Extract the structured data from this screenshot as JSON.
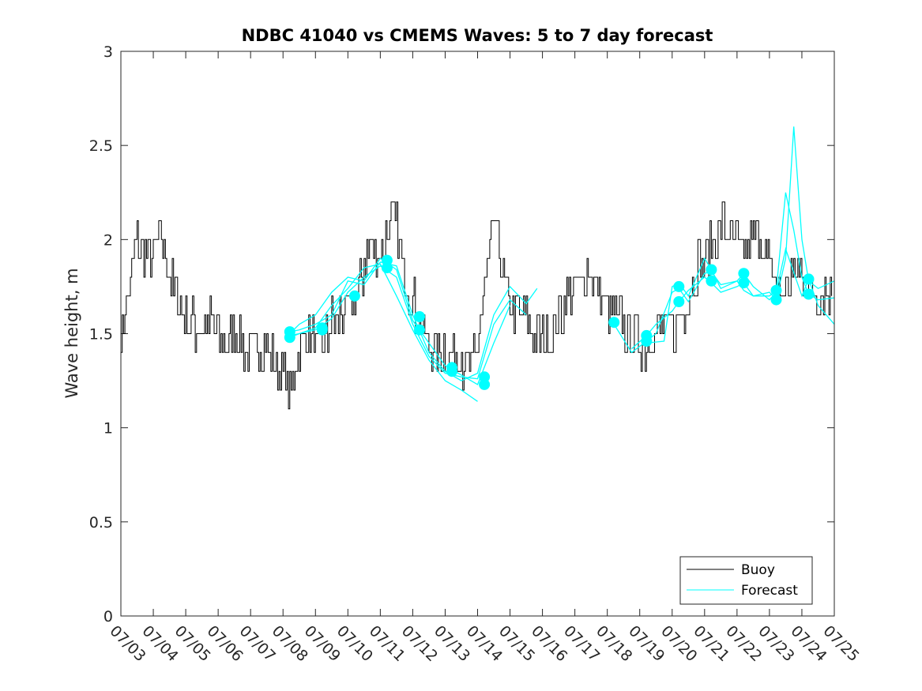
{
  "chart_data": {
    "type": "line",
    "title": "NDBC 41040 vs CMEMS Waves: 5 to 7 day forecast",
    "xlabel": "",
    "ylabel": "Wave height, m",
    "xlim": [
      "07/03",
      "07/25"
    ],
    "ylim": [
      0,
      3
    ],
    "x_tick_labels": [
      "07/03",
      "07/04",
      "07/05",
      "07/06",
      "07/07",
      "07/08",
      "07/09",
      "07/10",
      "07/11",
      "07/12",
      "07/13",
      "07/14",
      "07/15",
      "07/16",
      "07/17",
      "07/18",
      "07/19",
      "07/20",
      "07/21",
      "07/22",
      "07/23",
      "07/24",
      "07/25"
    ],
    "y_tick_labels": [
      "0",
      "0.5",
      "1",
      "1.5",
      "2",
      "2.5",
      "3"
    ],
    "y_tick_values": [
      0,
      0.5,
      1,
      1.5,
      2,
      2.5,
      3
    ],
    "grid": false,
    "legend_position": "bottom-right",
    "colors": {
      "buoy": "#000000",
      "forecast": "#00ffff"
    },
    "series": [
      {
        "name": "Buoy",
        "x": [
          "07/03 00h",
          "07/03 06h",
          "07/03 12h",
          "07/03 18h",
          "07/04 00h",
          "07/04 06h",
          "07/04 12h",
          "07/04 18h",
          "07/05 00h",
          "07/05 06h",
          "07/05 12h",
          "07/05 18h",
          "07/06 00h",
          "07/06 06h",
          "07/06 12h",
          "07/06 18h",
          "07/07 00h",
          "07/07 06h",
          "07/07 12h",
          "07/07 18h",
          "07/08 00h",
          "07/08 06h",
          "07/08 12h",
          "07/08 18h",
          "07/09 00h",
          "07/09 06h",
          "07/09 12h",
          "07/09 18h",
          "07/10 00h",
          "07/10 06h",
          "07/10 12h",
          "07/10 18h",
          "07/11 00h",
          "07/11 06h",
          "07/11 12h",
          "07/11 18h",
          "07/12 00h",
          "07/12 06h",
          "07/12 12h",
          "07/12 18h",
          "07/13 00h",
          "07/13 06h",
          "07/13 12h",
          "07/13 18h",
          "07/14 00h",
          "07/14 06h",
          "07/14 12h",
          "07/14 18h",
          "07/15 00h",
          "07/15 06h",
          "07/15 12h",
          "07/15 18h",
          "07/16 00h",
          "07/16 06h",
          "07/16 12h",
          "07/16 18h",
          "07/17 00h",
          "07/17 06h",
          "07/17 12h",
          "07/17 18h",
          "07/18 00h",
          "07/18 06h",
          "07/18 12h",
          "07/18 18h",
          "07/19 00h",
          "07/19 06h",
          "07/19 12h",
          "07/19 18h",
          "07/20 00h",
          "07/20 06h",
          "07/20 12h",
          "07/20 18h",
          "07/21 00h",
          "07/21 06h",
          "07/21 12h",
          "07/21 18h",
          "07/22 00h",
          "07/22 06h",
          "07/22 12h",
          "07/22 18h",
          "07/23 00h",
          "07/23 06h",
          "07/23 12h",
          "07/23 18h",
          "07/24 00h",
          "07/24 06h",
          "07/24 12h",
          "07/24 18h"
        ],
        "values": [
          1.5,
          1.7,
          2.0,
          1.9,
          1.9,
          2.0,
          1.8,
          1.7,
          1.6,
          1.55,
          1.5,
          1.55,
          1.5,
          1.45,
          1.5,
          1.45,
          1.4,
          1.45,
          1.4,
          1.35,
          1.3,
          1.2,
          1.4,
          1.5,
          1.45,
          1.4,
          1.55,
          1.6,
          1.6,
          1.7,
          1.85,
          2.0,
          1.9,
          2.05,
          2.1,
          1.8,
          1.7,
          1.55,
          1.45,
          1.4,
          1.4,
          1.35,
          1.35,
          1.3,
          1.45,
          1.8,
          2.1,
          1.8,
          1.6,
          1.6,
          1.55,
          1.5,
          1.45,
          1.5,
          1.6,
          1.7,
          1.75,
          1.8,
          1.8,
          1.7,
          1.6,
          1.6,
          1.55,
          1.5,
          1.45,
          1.45,
          1.5,
          1.5,
          1.5,
          1.6,
          1.7,
          1.85,
          1.9,
          2.0,
          2.1,
          2.0,
          1.95,
          1.9,
          2.0,
          2.0,
          1.85,
          1.75,
          1.7,
          1.85,
          1.8,
          1.75,
          1.7,
          1.7
        ]
      },
      {
        "name": "Forecast",
        "runs": [
          {
            "x": [
              "07/08 05h",
              "07/08 12h",
              "07/09 00h",
              "07/09 12h",
              "07/10 00h",
              "07/10 12h",
              "07/11 00h",
              "07/11 12h",
              "07/12 00h",
              "07/12 12h",
              "07/13 00h",
              "07/13 12h",
              "07/14 00h",
              "07/14 12h",
              "07/15 00h",
              "07/15 12h",
              "07/15 20h"
            ],
            "values": [
              1.51,
              1.52,
              1.55,
              1.6,
              1.78,
              1.76,
              1.88,
              1.86,
              1.6,
              1.4,
              1.3,
              1.25,
              1.29,
              1.6,
              1.75,
              1.66,
              1.74
            ]
          },
          {
            "x": [
              "07/08 05h",
              "07/08 12h",
              "07/09 00h",
              "07/09 12h",
              "07/10 00h",
              "07/10 12h",
              "07/11 00h",
              "07/11 12h",
              "07/12 00h",
              "07/12 12h",
              "07/13 00h",
              "07/13 12h",
              "07/14 00h",
              "07/14 12h",
              "07/15 00h",
              "07/15 12h"
            ],
            "values": [
              1.48,
              1.5,
              1.52,
              1.58,
              1.72,
              1.8,
              1.86,
              1.8,
              1.55,
              1.38,
              1.29,
              1.27,
              1.26,
              1.55,
              1.68,
              1.6
            ]
          },
          {
            "x": [
              "07/08 05h",
              "07/08 12h",
              "07/09 00h",
              "07/09 12h",
              "07/10 00h",
              "07/10 12h",
              "07/11 00h",
              "07/11 12h",
              "07/12 00h",
              "07/12 12h",
              "07/13 00h",
              "07/13 12h",
              "07/14 00h",
              "07/14 12h",
              "07/15 00h"
            ],
            "values": [
              1.5,
              1.55,
              1.6,
              1.72,
              1.8,
              1.78,
              1.9,
              1.84,
              1.57,
              1.45,
              1.33,
              1.28,
              1.23,
              1.45,
              1.65
            ]
          },
          {
            "x": [
              "07/08 05h",
              "07/08 12h",
              "07/09 00h",
              "07/09 12h",
              "07/10 00h",
              "07/10 12h",
              "07/11 00h",
              "07/11 12h",
              "07/12 00h",
              "07/12 12h",
              "07/13 00h",
              "07/13 12h",
              "07/14 00h"
            ],
            "values": [
              1.49,
              1.5,
              1.53,
              1.65,
              1.74,
              1.85,
              1.87,
              1.7,
              1.52,
              1.36,
              1.25,
              1.2,
              1.14
            ]
          },
          {
            "x": [
              "07/18 05h",
              "07/18 18h",
              "07/19 05h",
              "07/19 12h",
              "07/20 00h",
              "07/20 05h",
              "07/20 12h",
              "07/21 00h",
              "07/21 05h",
              "07/21 12h",
              "07/22 00h",
              "07/22 05h",
              "07/22 12h",
              "07/23 00h",
              "07/23 05h",
              "07/23 12h",
              "07/23 18h",
              "07/24 00h",
              "07/24 05h",
              "07/24 12h",
              "07/25 00h"
            ],
            "values": [
              1.55,
              1.4,
              1.46,
              1.5,
              1.72,
              1.74,
              1.67,
              1.82,
              1.83,
              1.76,
              1.78,
              1.73,
              1.7,
              1.72,
              1.68,
              1.9,
              2.6,
              2.0,
              1.78,
              1.74,
              1.78
            ]
          },
          {
            "x": [
              "07/18 18h",
              "07/19 05h",
              "07/19 12h",
              "07/20 00h",
              "07/20 05h",
              "07/20 12h",
              "07/21 00h",
              "07/21 05h",
              "07/21 12h",
              "07/22 00h",
              "07/22 05h",
              "07/22 12h",
              "07/23 00h",
              "07/23 05h",
              "07/23 12h",
              "07/23 18h",
              "07/24 00h",
              "07/24 05h",
              "07/24 12h",
              "07/25 00h"
            ],
            "values": [
              1.42,
              1.49,
              1.55,
              1.62,
              1.67,
              1.73,
              1.8,
              1.77,
              1.72,
              1.75,
              1.77,
              1.7,
              1.7,
              1.73,
              2.25,
              2.05,
              1.8,
              1.71,
              1.68,
              1.69
            ]
          },
          {
            "x": [
              "07/19 05h",
              "07/19 18h",
              "07/20 00h",
              "07/20 05h",
              "07/20 12h",
              "07/21 00h",
              "07/21 05h",
              "07/21 12h",
              "07/22 00h",
              "07/22 05h",
              "07/22 12h",
              "07/23 00h",
              "07/23 05h",
              "07/23 12h",
              "07/24 00h",
              "07/24 05h",
              "07/24 12h",
              "07/25 00h"
            ],
            "values": [
              1.45,
              1.46,
              1.75,
              1.77,
              1.7,
              1.9,
              1.84,
              1.74,
              1.78,
              1.82,
              1.75,
              1.68,
              1.72,
              1.95,
              1.7,
              1.79,
              1.65,
              1.55
            ]
          }
        ],
        "markers": [
          {
            "x": "07/08 05h",
            "y": 1.51
          },
          {
            "x": "07/08 05h",
            "y": 1.48
          },
          {
            "x": "07/09 05h",
            "y": 1.53
          },
          {
            "x": "07/09 05h",
            "y": 1.52
          },
          {
            "x": "07/10 05h",
            "y": 1.7
          },
          {
            "x": "07/11 05h",
            "y": 1.89
          },
          {
            "x": "07/11 05h",
            "y": 1.85
          },
          {
            "x": "07/12 05h",
            "y": 1.59
          },
          {
            "x": "07/12 05h",
            "y": 1.52
          },
          {
            "x": "07/13 05h",
            "y": 1.32
          },
          {
            "x": "07/13 05h",
            "y": 1.3
          },
          {
            "x": "07/14 05h",
            "y": 1.27
          },
          {
            "x": "07/14 05h",
            "y": 1.23
          },
          {
            "x": "07/18 05h",
            "y": 1.56
          },
          {
            "x": "07/19 05h",
            "y": 1.49
          },
          {
            "x": "07/19 05h",
            "y": 1.46
          },
          {
            "x": "07/20 05h",
            "y": 1.75
          },
          {
            "x": "07/20 05h",
            "y": 1.67
          },
          {
            "x": "07/21 05h",
            "y": 1.84
          },
          {
            "x": "07/21 05h",
            "y": 1.78
          },
          {
            "x": "07/22 05h",
            "y": 1.82
          },
          {
            "x": "07/22 05h",
            "y": 1.77
          },
          {
            "x": "07/23 05h",
            "y": 1.73
          },
          {
            "x": "07/23 05h",
            "y": 1.68
          },
          {
            "x": "07/24 05h",
            "y": 1.79
          },
          {
            "x": "07/24 05h",
            "y": 1.71
          }
        ]
      }
    ]
  }
}
